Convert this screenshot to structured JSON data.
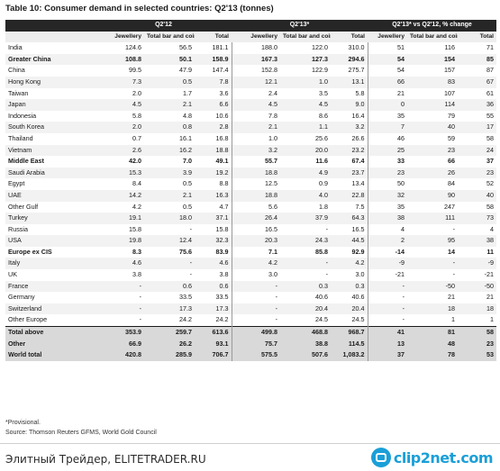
{
  "title": "Table 10: Consumer demand in selected countries: Q2'13 (tonnes)",
  "groups": [
    "Q2'12",
    "Q2'13*",
    "Q2'13* vs Q2'12, % change"
  ],
  "columns": [
    "Jewellery",
    "Total bar and coin invest",
    "Total"
  ],
  "rows": [
    {
      "label": "India",
      "v": [
        "124.6",
        "56.5",
        "181.1",
        "188.0",
        "122.0",
        "310.0",
        "51",
        "116",
        "71"
      ]
    },
    {
      "label": "Greater China",
      "v": [
        "108.8",
        "50.1",
        "158.9",
        "167.3",
        "127.3",
        "294.6",
        "54",
        "154",
        "85"
      ]
    },
    {
      "label": "China",
      "v": [
        "99.5",
        "47.9",
        "147.4",
        "152.8",
        "122.9",
        "275.7",
        "54",
        "157",
        "87"
      ]
    },
    {
      "label": "Hong Kong",
      "v": [
        "7.3",
        "0.5",
        "7.8",
        "12.1",
        "1.0",
        "13.1",
        "66",
        "83",
        "67"
      ]
    },
    {
      "label": "Taiwan",
      "v": [
        "2.0",
        "1.7",
        "3.6",
        "2.4",
        "3.5",
        "5.8",
        "21",
        "107",
        "61"
      ]
    },
    {
      "label": "Japan",
      "v": [
        "4.5",
        "2.1",
        "6.6",
        "4.5",
        "4.5",
        "9.0",
        "0",
        "114",
        "36"
      ]
    },
    {
      "label": "Indonesia",
      "v": [
        "5.8",
        "4.8",
        "10.6",
        "7.8",
        "8.6",
        "16.4",
        "35",
        "79",
        "55"
      ]
    },
    {
      "label": "South Korea",
      "v": [
        "2.0",
        "0.8",
        "2.8",
        "2.1",
        "1.1",
        "3.2",
        "7",
        "40",
        "17"
      ]
    },
    {
      "label": "Thailand",
      "v": [
        "0.7",
        "16.1",
        "16.8",
        "1.0",
        "25.6",
        "26.6",
        "46",
        "59",
        "58"
      ]
    },
    {
      "label": "Vietnam",
      "v": [
        "2.6",
        "16.2",
        "18.8",
        "3.2",
        "20.0",
        "23.2",
        "25",
        "23",
        "24"
      ]
    },
    {
      "label": "Middle East",
      "v": [
        "42.0",
        "7.0",
        "49.1",
        "55.7",
        "11.6",
        "67.4",
        "33",
        "66",
        "37"
      ]
    },
    {
      "label": "Saudi Arabia",
      "v": [
        "15.3",
        "3.9",
        "19.2",
        "18.8",
        "4.9",
        "23.7",
        "23",
        "26",
        "23"
      ]
    },
    {
      "label": "Egypt",
      "v": [
        "8.4",
        "0.5",
        "8.8",
        "12.5",
        "0.9",
        "13.4",
        "50",
        "84",
        "52"
      ]
    },
    {
      "label": "UAE",
      "v": [
        "14.2",
        "2.1",
        "16.3",
        "18.8",
        "4.0",
        "22.8",
        "32",
        "90",
        "40"
      ]
    },
    {
      "label": "Other Gulf",
      "v": [
        "4.2",
        "0.5",
        "4.7",
        "5.6",
        "1.8",
        "7.5",
        "35",
        "247",
        "58"
      ]
    },
    {
      "label": "Turkey",
      "v": [
        "19.1",
        "18.0",
        "37.1",
        "26.4",
        "37.9",
        "64.3",
        "38",
        "111",
        "73"
      ]
    },
    {
      "label": "Russia",
      "v": [
        "15.8",
        "-",
        "15.8",
        "16.5",
        "-",
        "16.5",
        "4",
        "-",
        "4"
      ]
    },
    {
      "label": "USA",
      "v": [
        "19.8",
        "12.4",
        "32.3",
        "20.3",
        "24.3",
        "44.5",
        "2",
        "95",
        "38"
      ]
    },
    {
      "label": "Europe ex CIS",
      "v": [
        "8.3",
        "75.6",
        "83.9",
        "7.1",
        "85.8",
        "92.9",
        "-14",
        "14",
        "11"
      ]
    },
    {
      "label": "Italy",
      "v": [
        "4.6",
        "-",
        "4.6",
        "4.2",
        "-",
        "4.2",
        "-9",
        "-",
        "-9"
      ]
    },
    {
      "label": "UK",
      "v": [
        "3.8",
        "-",
        "3.8",
        "3.0",
        "-",
        "3.0",
        "-21",
        "-",
        "-21"
      ]
    },
    {
      "label": "France",
      "v": [
        "-",
        "0.6",
        "0.6",
        "-",
        "0.3",
        "0.3",
        "-",
        "-50",
        "-50"
      ]
    },
    {
      "label": "Germany",
      "v": [
        "-",
        "33.5",
        "33.5",
        "-",
        "40.6",
        "40.6",
        "-",
        "21",
        "21"
      ]
    },
    {
      "label": "Switzerland",
      "v": [
        "-",
        "17.3",
        "17.3",
        "-",
        "20.4",
        "20.4",
        "-",
        "18",
        "18"
      ]
    },
    {
      "label": "Other Europe",
      "v": [
        "-",
        "24.2",
        "24.2",
        "-",
        "24.5",
        "24.5",
        "-",
        "1",
        "1"
      ]
    },
    {
      "label": "Total above",
      "v": [
        "353.9",
        "259.7",
        "613.6",
        "499.8",
        "468.8",
        "968.7",
        "41",
        "81",
        "58"
      ]
    },
    {
      "label": "Other",
      "v": [
        "66.9",
        "26.2",
        "93.1",
        "75.7",
        "38.8",
        "114.5",
        "13",
        "48",
        "23"
      ]
    },
    {
      "label": "World total",
      "v": [
        "420.8",
        "285.9",
        "706.7",
        "575.5",
        "507.6",
        "1,083.2",
        "37",
        "78",
        "53"
      ]
    }
  ],
  "footnote_provisional": "*Provisional.",
  "source": "Source: Thomson Reuters GFMS, World Gold Council",
  "footer": {
    "site_text": "Элитный Трейдер, ELITETRADER.RU",
    "logo_text": "clip2net.com"
  }
}
